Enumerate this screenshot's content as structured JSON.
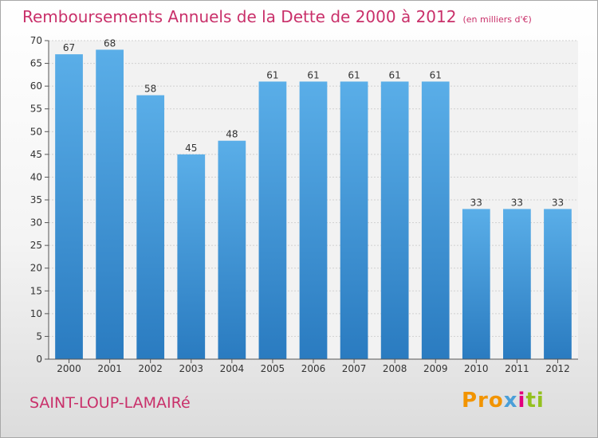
{
  "header": {
    "title": "Remboursements Annuels de la Dette de 2000 à 2012",
    "subtitle": "(en milliers d'€)"
  },
  "footer": {
    "commune": "SAINT-LOUP-LAMAIRé",
    "brand": {
      "p1": "Pro",
      "p2": "x",
      "p3": "i",
      "p4": "ti"
    }
  },
  "colors": {
    "title": "#c9306a",
    "bar_light": "#5aaee8",
    "bar_dark": "#2a7bc0"
  },
  "chart_data": {
    "type": "bar",
    "title": "Remboursements Annuels de la Dette de 2000 à 2012",
    "subtitle": "(en milliers d'€)",
    "categories": [
      "2000",
      "2001",
      "2002",
      "2003",
      "2004",
      "2005",
      "2006",
      "2007",
      "2008",
      "2009",
      "2010",
      "2011",
      "2012"
    ],
    "values": [
      67,
      68,
      58,
      45,
      48,
      61,
      61,
      61,
      61,
      61,
      33,
      33,
      33
    ],
    "ylim": [
      0,
      70
    ],
    "yticks": [
      0,
      5,
      10,
      15,
      20,
      25,
      30,
      35,
      40,
      45,
      50,
      55,
      60,
      65,
      70
    ],
    "grid": true,
    "data_labels": true
  }
}
